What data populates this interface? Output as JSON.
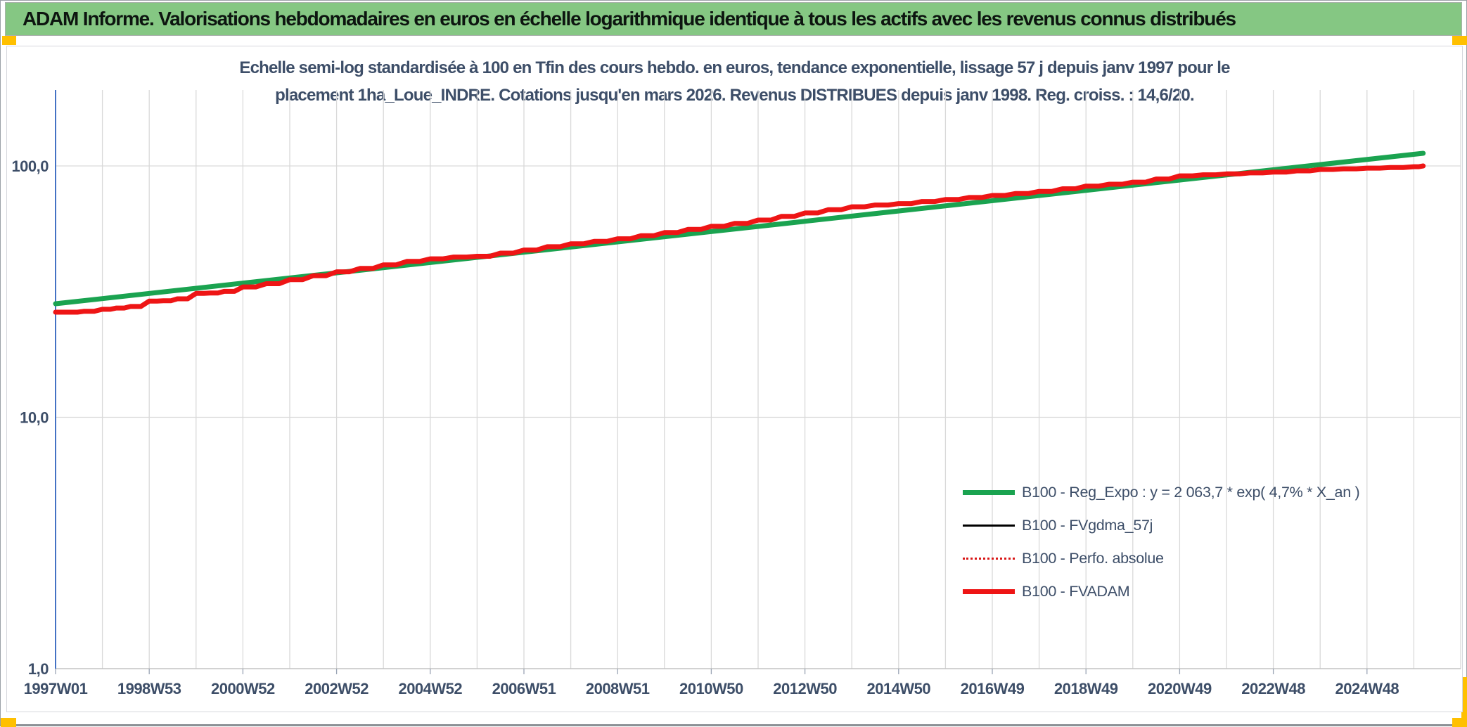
{
  "header": {
    "title": "ADAM Informe. Valorisations hebdomadaires en euros en échelle logarithmique identique à tous les actifs avec les revenus connus distribués",
    "bg": "#85c783",
    "accent_color": "#ffc000"
  },
  "chart_data": {
    "type": "line",
    "title_line1": "Echelle semi-log standardisée à 100 en Tfin des cours hebdo. en euros, tendance exponentielle, lissage 57 j depuis janv 1997 pour le",
    "title_line2": "placement 1ha_Loue_INDRE. Cotations jusqu'en mars 2026. Revenus DISTRIBUES depuis janv 1998. Reg. croiss. : 14,6/20.",
    "layout": {
      "legend_position": "inside-right",
      "grid": "on",
      "text_color": "#3d4e68"
    },
    "y_axis": {
      "scale": "log",
      "tick_labels": [
        "100,0",
        "10,0",
        "1,0"
      ],
      "tick_values": [
        100,
        10,
        1
      ],
      "range": [
        1,
        200
      ],
      "gridline_color": "#d9d9d9",
      "axis_color": "#4472c4"
    },
    "x_axis": {
      "tick_labels": [
        "1997W01",
        "1998W53",
        "2000W52",
        "2002W52",
        "2004W52",
        "2006W51",
        "2008W51",
        "2010W50",
        "2012W50",
        "2014W50",
        "2016W49",
        "2018W49",
        "2020W49",
        "2022W48",
        "2024W48"
      ],
      "tick_years": [
        1997,
        1999,
        2001,
        2003,
        2005,
        2007,
        2009,
        2011,
        2013,
        2015,
        2017,
        2019,
        2021,
        2023,
        2025
      ],
      "range_years": [
        1997,
        2027
      ],
      "gridline_every_years": 1,
      "data_end_year": 2026.2
    },
    "series": [
      {
        "name": "Reg_Expo",
        "legend_label": "B100 - Reg_Expo : y = 2 063,7 * exp( 4,7% *  X_an )",
        "color": "#1aa350",
        "width": 7,
        "style": "solid",
        "step": false,
        "points": [
          [
            1997.0,
            28.3
          ],
          [
            2026.2,
            112.3
          ]
        ]
      },
      {
        "name": "FVgdma_57j",
        "legend_label": "B100 - FVgdma_57j",
        "color": "#000000",
        "width": 3,
        "style": "solid",
        "step": true,
        "points": "same_as:FVADAM"
      },
      {
        "name": "Perfo_absolue",
        "legend_label": "B100 - Perfo. absolue",
        "color": "#d91717",
        "width": 2.5,
        "style": "dotted",
        "step": true,
        "points": "same_as:FVADAM"
      },
      {
        "name": "FVADAM",
        "legend_label": "B100 - FVADAM",
        "color": "#ee1515",
        "width": 7,
        "style": "solid",
        "step": true,
        "points": [
          [
            1997.0,
            26.2
          ],
          [
            1997.3,
            26.2
          ],
          [
            1997.6,
            26.4
          ],
          [
            1998.0,
            26.9
          ],
          [
            1998.3,
            27.2
          ],
          [
            1998.6,
            27.6
          ],
          [
            1999.0,
            29.0
          ],
          [
            1999.3,
            29.1
          ],
          [
            1999.6,
            29.6
          ],
          [
            2000.0,
            31.1
          ],
          [
            2000.3,
            31.2
          ],
          [
            2000.6,
            31.7
          ],
          [
            2001.0,
            33.0
          ],
          [
            2001.5,
            34.0
          ],
          [
            2002.0,
            35.3
          ],
          [
            2002.5,
            36.6
          ],
          [
            2003.0,
            37.9
          ],
          [
            2003.5,
            39.1
          ],
          [
            2004.0,
            40.4
          ],
          [
            2004.5,
            41.7
          ],
          [
            2005.0,
            42.7
          ],
          [
            2005.5,
            43.4
          ],
          [
            2006.0,
            43.7
          ],
          [
            2006.5,
            45.0
          ],
          [
            2007.0,
            46.3
          ],
          [
            2007.5,
            47.7
          ],
          [
            2008.0,
            49.0
          ],
          [
            2008.5,
            50.1
          ],
          [
            2009.0,
            51.3
          ],
          [
            2009.5,
            52.8
          ],
          [
            2010.0,
            54.3
          ],
          [
            2010.5,
            55.9
          ],
          [
            2011.0,
            57.5
          ],
          [
            2011.5,
            59.1
          ],
          [
            2012.0,
            60.9
          ],
          [
            2012.5,
            63.0
          ],
          [
            2013.0,
            65.0
          ],
          [
            2013.5,
            67.0
          ],
          [
            2014.0,
            68.8
          ],
          [
            2014.5,
            69.9
          ],
          [
            2015.0,
            70.8
          ],
          [
            2015.5,
            72.2
          ],
          [
            2016.0,
            73.5
          ],
          [
            2016.5,
            74.9
          ],
          [
            2017.0,
            76.3
          ],
          [
            2017.5,
            77.7
          ],
          [
            2018.0,
            79.2
          ],
          [
            2018.5,
            81.1
          ],
          [
            2019.0,
            83.1
          ],
          [
            2019.5,
            84.6
          ],
          [
            2020.0,
            86.2
          ],
          [
            2020.5,
            88.7
          ],
          [
            2021.0,
            91.3
          ],
          [
            2021.5,
            92.2
          ],
          [
            2022.0,
            93.0
          ],
          [
            2022.5,
            93.8
          ],
          [
            2023.0,
            94.5
          ],
          [
            2023.5,
            95.6
          ],
          [
            2024.0,
            96.8
          ],
          [
            2024.5,
            97.4
          ],
          [
            2025.0,
            98.0
          ],
          [
            2025.5,
            98.5
          ],
          [
            2026.0,
            99.3
          ],
          [
            2026.2,
            100.0
          ]
        ]
      }
    ]
  }
}
